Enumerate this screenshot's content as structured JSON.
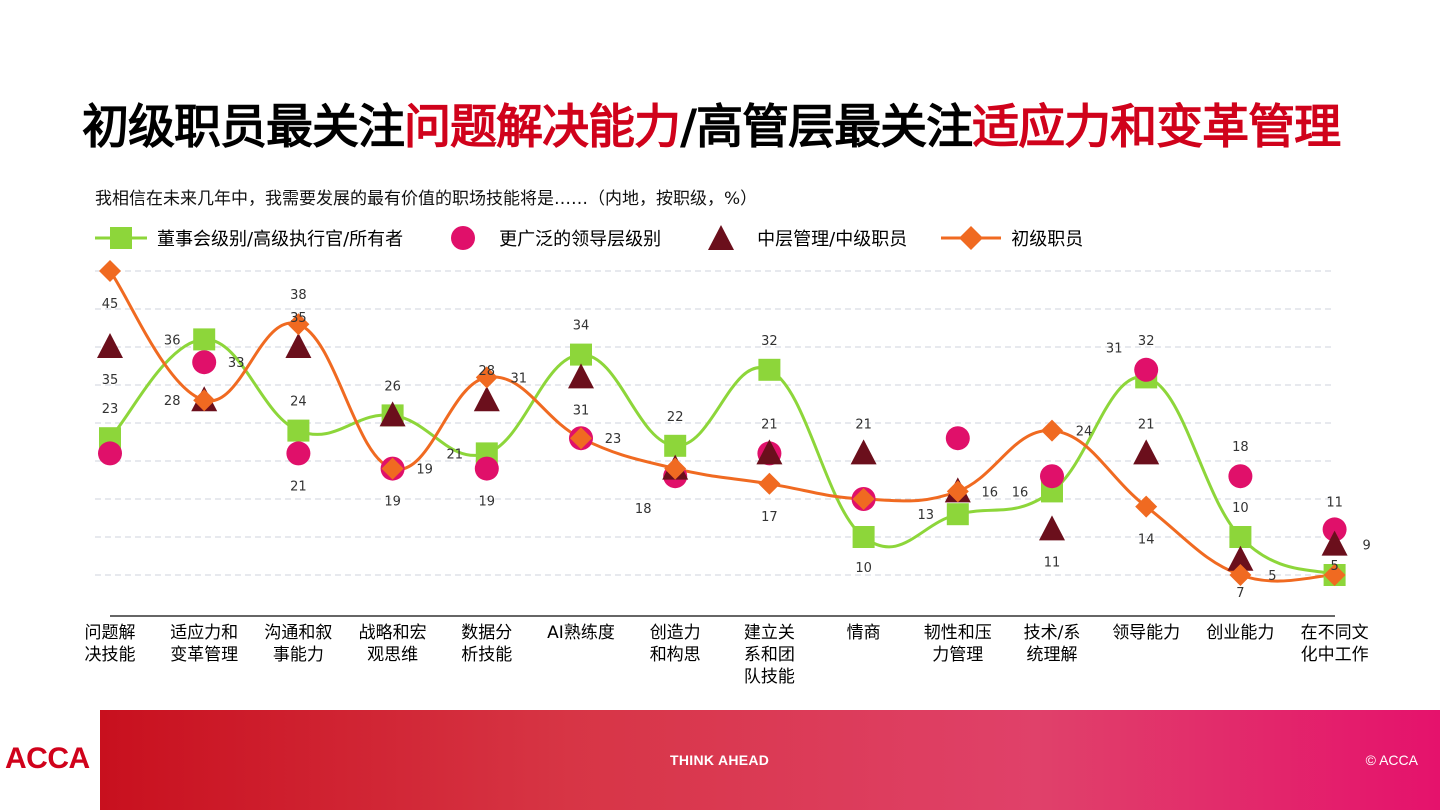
{
  "title": {
    "part1": "初级职员最关注",
    "part2": "问题解决能力",
    "part3": "/高管层最关注",
    "part4": "适应力和变革管理"
  },
  "subtitle": "我相信在未来几年中，我需要发展的最有价值的职场技能将是……（内地，按职级，%）",
  "colors": {
    "board": "#8dd63a",
    "leadership": "#e0106a",
    "middle": "#6b0f1c",
    "junior": "#f06a21",
    "accent": "#d0021b"
  },
  "footer": {
    "logo": "ACCA",
    "tagline": "THINK AHEAD",
    "copyright": "© ACCA"
  },
  "chart_data": {
    "type": "line",
    "categories": [
      [
        "问题解",
        "决技能"
      ],
      [
        "适应力和",
        "变革管理"
      ],
      [
        "沟通和叙",
        "事能力"
      ],
      [
        "战略和宏",
        "观思维"
      ],
      [
        "数据分",
        "析技能"
      ],
      [
        "AI熟练度"
      ],
      [
        "创造力",
        "和构思"
      ],
      [
        "建立关",
        "系和团",
        "队技能"
      ],
      [
        "情商"
      ],
      [
        "韧性和压",
        "力管理"
      ],
      [
        "技术/系",
        "统理解"
      ],
      [
        "领导能力"
      ],
      [
        "创业能力"
      ],
      [
        "在不同文",
        "化中工作"
      ]
    ],
    "series": [
      {
        "name": "董事会级别/高级执行官/所有者",
        "marker": "square",
        "color": "#8dd63a",
        "line": true,
        "values": [
          23,
          36,
          24,
          26,
          21,
          34,
          22,
          32,
          10,
          13,
          16,
          31,
          10,
          5
        ]
      },
      {
        "name": "更广泛的领导层级别",
        "marker": "circle",
        "color": "#e0106a",
        "line": false,
        "values": [
          21,
          33,
          21,
          19,
          19,
          23,
          18,
          21,
          15,
          23,
          18,
          32,
          18,
          11
        ]
      },
      {
        "name": "中层管理/中级职员",
        "marker": "triangle",
        "color": "#6b0f1c",
        "line": false,
        "values": [
          35,
          28,
          35,
          26,
          28,
          31,
          19,
          21,
          21,
          16,
          11,
          21,
          7,
          9
        ]
      },
      {
        "name": "初级职员",
        "marker": "diamond",
        "color": "#f06a21",
        "line": true,
        "values": [
          45,
          28,
          38,
          19,
          31,
          23,
          19,
          17,
          15,
          16,
          24,
          14,
          5,
          5
        ]
      }
    ],
    "ylim": [
      0,
      48
    ],
    "grid": true,
    "legend_position": "top"
  }
}
